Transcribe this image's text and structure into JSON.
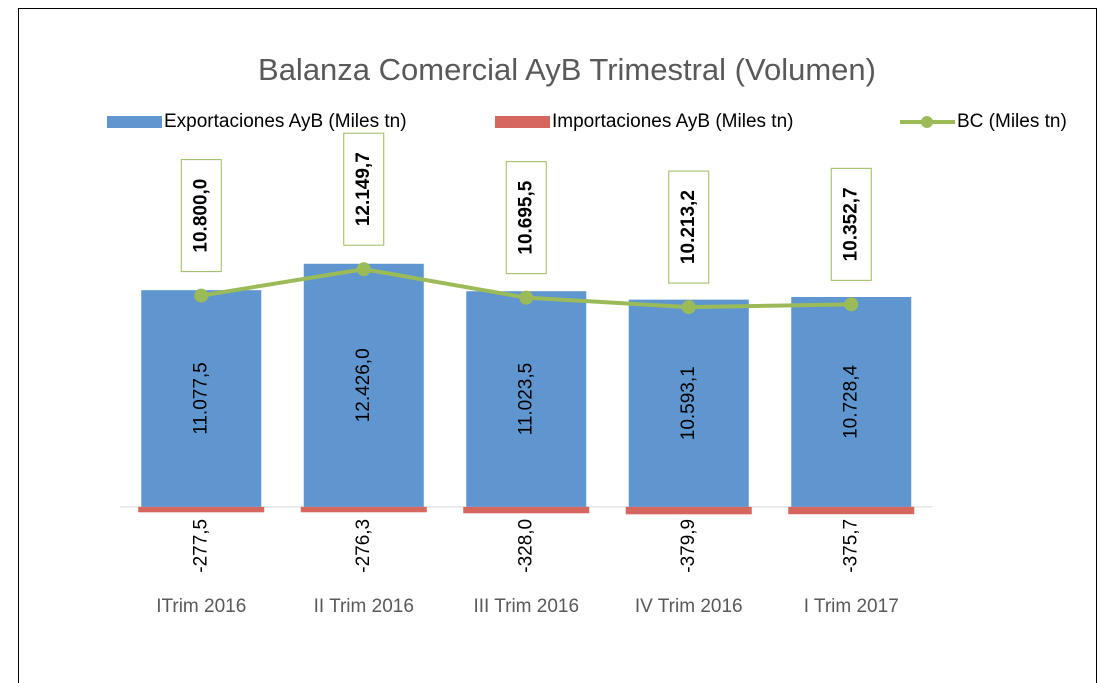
{
  "chart_data": {
    "type": "bar",
    "title": "Balanza Comercial AyB Trimestral (Volumen)",
    "categories": [
      "ITrim 2016",
      "II Trim 2016",
      "III Trim 2016",
      "IV Trim 2016",
      "I Trim 2017"
    ],
    "series": [
      {
        "name": "Exportaciones AyB (Miles tn)",
        "type": "bar",
        "color": "#5f96cf",
        "values": [
          11077.5,
          12426.0,
          11023.5,
          10593.1,
          10728.4
        ],
        "value_labels": [
          "11.077,5",
          "12.426,0",
          "11.023,5",
          "10.593,1",
          "10.728,4"
        ]
      },
      {
        "name": "Importaciones AyB (Miles tn)",
        "type": "bar",
        "color": "#d6675f",
        "values": [
          -277.5,
          -276.3,
          -328.0,
          -379.9,
          -375.7
        ],
        "value_labels": [
          "-277,5",
          "-276,3",
          "-328,0",
          "-379,9",
          "-375,7"
        ]
      },
      {
        "name": "BC (Miles tn)",
        "type": "line",
        "color": "#9bbb59",
        "values": [
          10800.0,
          12149.7,
          10695.5,
          10213.2,
          10352.7
        ],
        "value_labels": [
          "10.800,0",
          "12.149,7",
          "10.695,5",
          "10.213,2",
          "10.352,7"
        ]
      }
    ],
    "ylim": [
      -2000,
      14000
    ],
    "grid": false
  }
}
